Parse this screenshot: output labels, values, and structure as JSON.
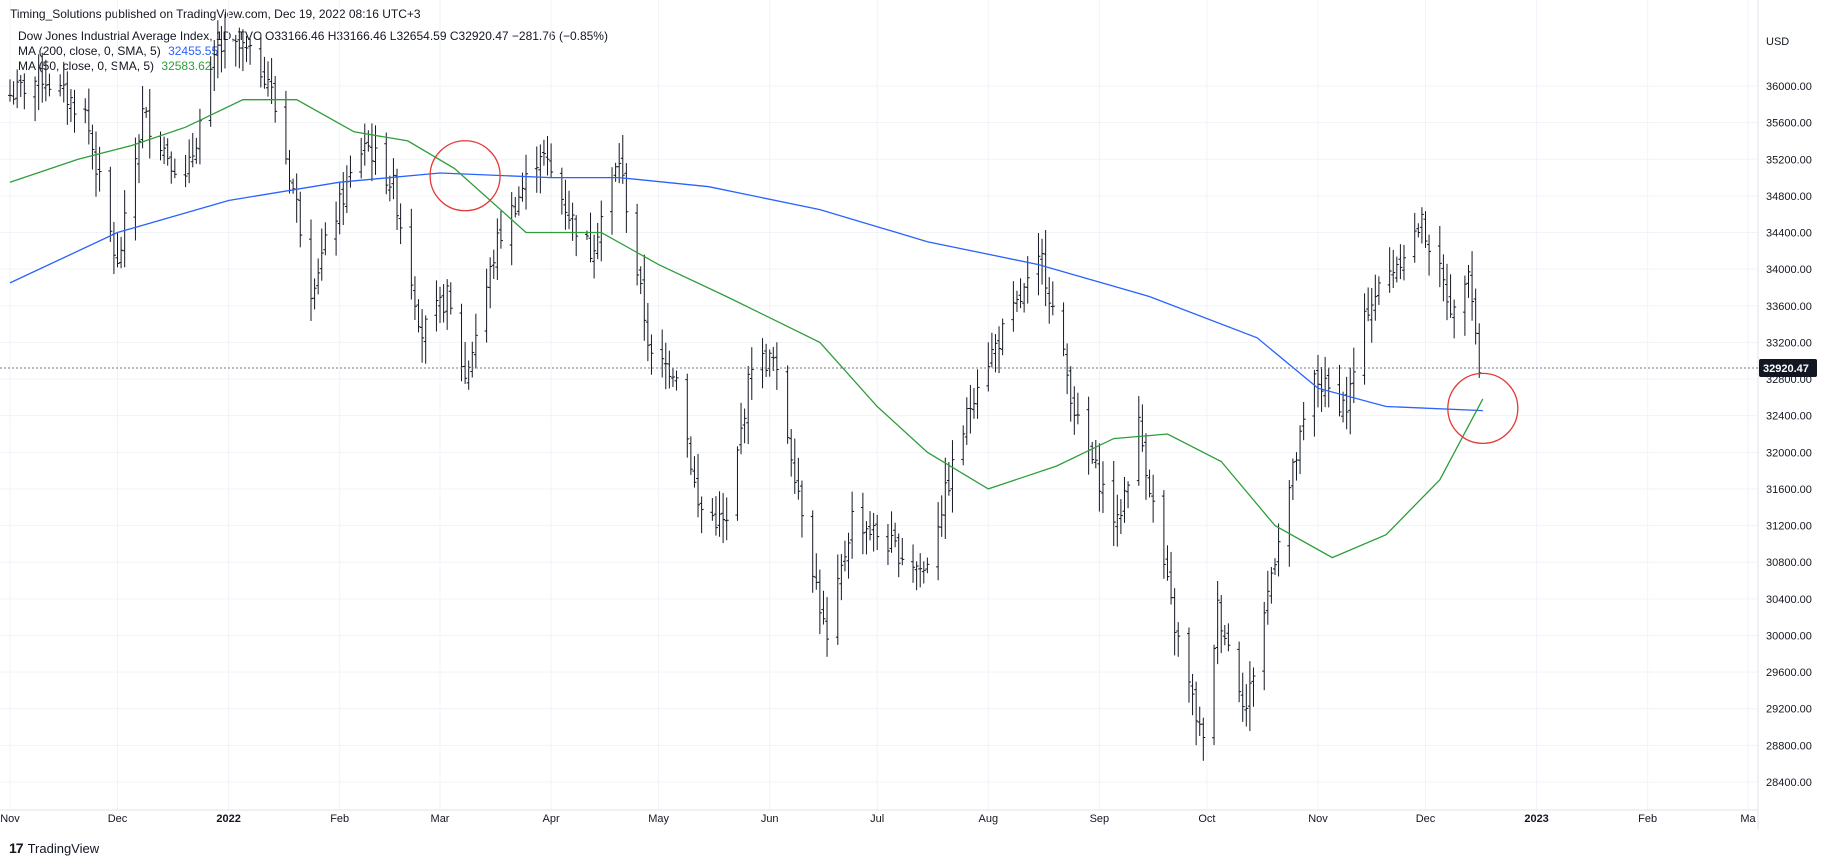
{
  "header": {
    "publisher": "Timing_Solutions published on TradingView.com, Dec 19, 2022 08:16 UTC+3"
  },
  "legend": {
    "symbol_line": "Dow Jones Industrial Average Index, 1D, TVC  O33166.46  H33166.46  L32654.59  C32920.47  −281.76 (−0.85%)",
    "ma200_label": "MA (200, close, 0, SMA, 5)",
    "ma200_value": "32455.55",
    "ma50_label": "MA (50, close, 0, SMA, 5)",
    "ma50_value": "32583.62"
  },
  "footer": {
    "brand": "TradingView",
    "logo": "17"
  },
  "colors": {
    "bars": "#131722",
    "ma200": "#2962ff",
    "ma50": "#2e9e3a",
    "circle": "#e53935",
    "grid": "#f0f3fa",
    "price_tag": "#131722"
  },
  "chart_data": {
    "type": "ohlc",
    "currency": "USD",
    "last_price": "32920.47",
    "ylim": [
      28100,
      36500
    ],
    "y_ticks": [
      "28400.00",
      "28800.00",
      "29200.00",
      "29600.00",
      "30000.00",
      "30400.00",
      "30800.00",
      "31200.00",
      "31600.00",
      "32000.00",
      "32400.00",
      "32800.00",
      "33200.00",
      "33600.00",
      "34000.00",
      "34400.00",
      "34800.00",
      "35200.00",
      "35600.00",
      "36000.00"
    ],
    "x_range": [
      "2021-11-01",
      "2023-03-01"
    ],
    "x_ticks": [
      {
        "date": "2021-11-01",
        "label": "Nov",
        "bold": false
      },
      {
        "date": "2021-12-01",
        "label": "Dec",
        "bold": false
      },
      {
        "date": "2022-01-01",
        "label": "2022",
        "bold": true
      },
      {
        "date": "2022-02-01",
        "label": "Feb",
        "bold": false
      },
      {
        "date": "2022-03-01",
        "label": "Mar",
        "bold": false
      },
      {
        "date": "2022-04-01",
        "label": "Apr",
        "bold": false
      },
      {
        "date": "2022-05-01",
        "label": "May",
        "bold": false
      },
      {
        "date": "2022-06-01",
        "label": "Jun",
        "bold": false
      },
      {
        "date": "2022-07-01",
        "label": "Jul",
        "bold": false
      },
      {
        "date": "2022-08-01",
        "label": "Aug",
        "bold": false
      },
      {
        "date": "2022-09-01",
        "label": "Sep",
        "bold": false
      },
      {
        "date": "2022-10-01",
        "label": "Oct",
        "bold": false
      },
      {
        "date": "2022-11-01",
        "label": "Nov",
        "bold": false
      },
      {
        "date": "2022-12-01",
        "label": "Dec",
        "bold": false
      },
      {
        "date": "2023-01-01",
        "label": "2023",
        "bold": true
      },
      {
        "date": "2023-02-01",
        "label": "Feb",
        "bold": false
      },
      {
        "date": "2023-03-01",
        "label": "Ma",
        "bold": false
      }
    ],
    "close_path": [
      [
        "2021-11-01",
        35900
      ],
      [
        "2021-11-10",
        36100
      ],
      [
        "2021-11-22",
        35700
      ],
      [
        "2021-12-01",
        34000
      ],
      [
        "2021-12-08",
        35700
      ],
      [
        "2021-12-20",
        34950
      ],
      [
        "2021-12-29",
        36400
      ],
      [
        "2022-01-05",
        36400
      ],
      [
        "2022-01-12",
        36100
      ],
      [
        "2022-01-20",
        34700
      ],
      [
        "2022-01-24",
        33800
      ],
      [
        "2022-01-31",
        34600
      ],
      [
        "2022-02-08",
        35400
      ],
      [
        "2022-02-16",
        34900
      ],
      [
        "2022-02-24",
        33300
      ],
      [
        "2022-03-03",
        33700
      ],
      [
        "2022-03-08",
        32800
      ],
      [
        "2022-03-17",
        34300
      ],
      [
        "2022-03-29",
        35300
      ],
      [
        "2022-04-06",
        34600
      ],
      [
        "2022-04-12",
        34200
      ],
      [
        "2022-04-20",
        35200
      ],
      [
        "2022-04-29",
        33000
      ],
      [
        "2022-05-06",
        32900
      ],
      [
        "2022-05-12",
        31400
      ],
      [
        "2022-05-20",
        31200
      ],
      [
        "2022-05-27",
        33000
      ],
      [
        "2022-06-02",
        33000
      ],
      [
        "2022-06-10",
        31400
      ],
      [
        "2022-06-17",
        29900
      ],
      [
        "2022-06-24",
        31300
      ],
      [
        "2022-07-01",
        31100
      ],
      [
        "2022-07-14",
        30700
      ],
      [
        "2022-07-29",
        32800
      ],
      [
        "2022-08-16",
        34100
      ],
      [
        "2022-08-26",
        32300
      ],
      [
        "2022-09-06",
        31200
      ],
      [
        "2022-09-12",
        32300
      ],
      [
        "2022-09-22",
        30100
      ],
      [
        "2022-09-30",
        28800
      ],
      [
        "2022-10-04",
        30300
      ],
      [
        "2022-10-12",
        29200
      ],
      [
        "2022-10-21",
        31100
      ],
      [
        "2022-10-31",
        32800
      ],
      [
        "2022-11-09",
        32500
      ],
      [
        "2022-11-15",
        33600
      ],
      [
        "2022-11-30",
        34500
      ],
      [
        "2022-12-09",
        33500
      ],
      [
        "2022-12-13",
        34100
      ],
      [
        "2022-12-16",
        32920
      ]
    ],
    "series": [
      {
        "name": "MA (200, close, 0, SMA, 5)",
        "color": "#2962ff",
        "points": [
          [
            "2021-11-01",
            33850
          ],
          [
            "2021-12-01",
            34400
          ],
          [
            "2022-01-01",
            34750
          ],
          [
            "2022-02-01",
            34950
          ],
          [
            "2022-03-01",
            35050
          ],
          [
            "2022-04-01",
            35000
          ],
          [
            "2022-04-20",
            35000
          ],
          [
            "2022-05-15",
            34900
          ],
          [
            "2022-06-15",
            34650
          ],
          [
            "2022-07-15",
            34300
          ],
          [
            "2022-08-15",
            34050
          ],
          [
            "2022-09-15",
            33700
          ],
          [
            "2022-10-15",
            33250
          ],
          [
            "2022-11-01",
            32700
          ],
          [
            "2022-11-20",
            32500
          ],
          [
            "2022-12-17",
            32455
          ]
        ]
      },
      {
        "name": "MA (50, close, 0, SMA, 5)",
        "color": "#2e9e3a",
        "points": [
          [
            "2021-11-01",
            34950
          ],
          [
            "2021-11-20",
            35200
          ],
          [
            "2021-12-05",
            35350
          ],
          [
            "2021-12-20",
            35550
          ],
          [
            "2022-01-05",
            35850
          ],
          [
            "2022-01-20",
            35850
          ],
          [
            "2022-02-05",
            35500
          ],
          [
            "2022-02-20",
            35400
          ],
          [
            "2022-03-05",
            35100
          ],
          [
            "2022-03-25",
            34400
          ],
          [
            "2022-04-15",
            34400
          ],
          [
            "2022-05-01",
            34050
          ],
          [
            "2022-05-20",
            33700
          ],
          [
            "2022-06-15",
            33200
          ],
          [
            "2022-07-01",
            32500
          ],
          [
            "2022-07-15",
            32000
          ],
          [
            "2022-08-01",
            31600
          ],
          [
            "2022-08-20",
            31850
          ],
          [
            "2022-09-05",
            32150
          ],
          [
            "2022-09-20",
            32200
          ],
          [
            "2022-10-05",
            31900
          ],
          [
            "2022-10-20",
            31200
          ],
          [
            "2022-11-05",
            30850
          ],
          [
            "2022-11-20",
            31100
          ],
          [
            "2022-12-05",
            31700
          ],
          [
            "2022-12-17",
            32583
          ]
        ]
      }
    ],
    "annotations": [
      {
        "type": "circle",
        "date": "2022-03-08",
        "value": 35020
      },
      {
        "type": "circle",
        "date": "2022-12-17",
        "value": 32480
      }
    ]
  }
}
